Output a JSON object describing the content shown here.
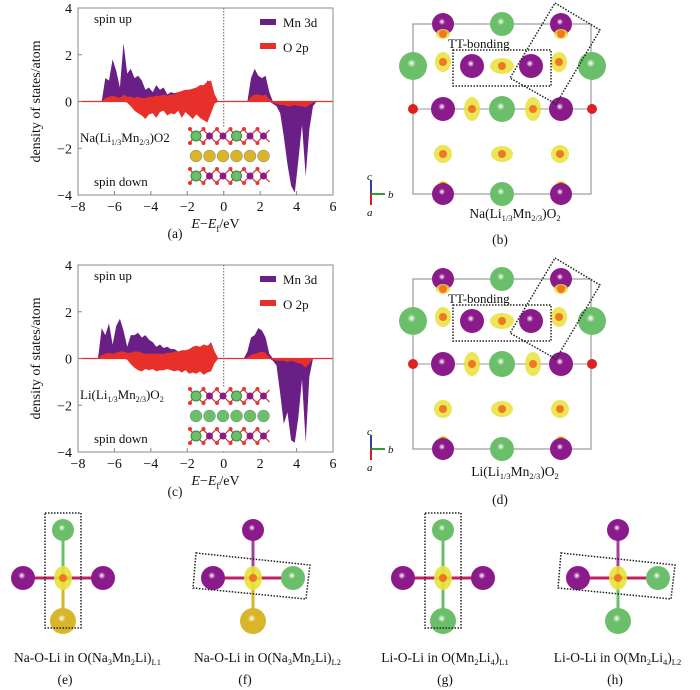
{
  "colors": {
    "mn": "#6a1f86",
    "o": "#e8302a",
    "mn_atom": "#8b1a8b",
    "li_atom": "#6cbf6a",
    "na_atom": "#d9b52a",
    "o_atom": "#f07820",
    "isosurface": "#e6e23a",
    "box": "#999999"
  },
  "chart_data": [
    {
      "type": "area",
      "panel": "(a)",
      "title": "",
      "xlabel": "E−Ef/eV",
      "ylabel": "density of states/atom",
      "xlim": [
        -8,
        6
      ],
      "ylim": [
        -4,
        4
      ],
      "xticks": [
        -8,
        -6,
        -4,
        -2,
        0,
        2,
        4,
        6
      ],
      "yticks": [
        -4,
        -2,
        0,
        2,
        4
      ],
      "legend": {
        "placement": "top-right",
        "entries": [
          "Mn 3d",
          "O 2p"
        ]
      },
      "annotations": [
        "spin up",
        "spin down",
        "Na(Li1/3Mn2/3)O2"
      ],
      "x": [
        -6.7,
        -6.5,
        -6.3,
        -6.1,
        -5.9,
        -5.7,
        -5.5,
        -5.3,
        -5.1,
        -4.9,
        -4.7,
        -4.5,
        -4.3,
        -4.1,
        -3.9,
        -3.7,
        -3.5,
        -3.3,
        -3.1,
        -2.9,
        -2.7,
        -2.5,
        -2.3,
        -2.1,
        -1.9,
        -1.7,
        -1.5,
        -1.3,
        -1.1,
        -0.9,
        -0.7,
        -0.5,
        -0.3,
        1.3,
        1.5,
        1.7,
        1.9,
        2.1,
        2.3,
        2.5,
        2.7,
        2.9,
        3.1,
        3.3,
        3.5,
        3.7,
        3.9,
        4.1,
        4.3,
        4.5,
        4.7,
        4.9,
        5.1
      ],
      "series": [
        {
          "name": "Mn 3d spin up",
          "values": [
            0,
            1.0,
            0.9,
            1.8,
            1.3,
            0.6,
            2.5,
            1.2,
            1.4,
            1.0,
            1.1,
            0.9,
            0.5,
            0.6,
            0.4,
            0.7,
            0.5,
            0.6,
            0.3,
            0.4,
            0.35,
            0.4,
            0.25,
            0.3,
            0.2,
            0.3,
            0.3,
            0.5,
            0.4,
            0.9,
            0.8,
            0.3,
            0,
            0,
            1.0,
            1.4,
            1.1,
            1.0,
            1.1,
            0.4,
            0,
            0,
            0,
            0,
            0,
            0,
            0,
            0,
            0,
            0,
            0,
            0,
            0
          ]
        },
        {
          "name": "O 2p spin up",
          "values": [
            0,
            0.15,
            0.2,
            0.25,
            0.2,
            0.15,
            0.3,
            0.2,
            0.2,
            0.15,
            0.2,
            0.15,
            0.15,
            0.2,
            0.2,
            0.25,
            0.25,
            0.3,
            0.25,
            0.3,
            0.3,
            0.4,
            0.45,
            0.5,
            0.5,
            0.55,
            0.6,
            0.7,
            0.7,
            0.85,
            0.9,
            0.3,
            0,
            0,
            0.2,
            0.3,
            0.3,
            0.25,
            0.3,
            0.1,
            0,
            0,
            0,
            0,
            0,
            0,
            0,
            0,
            0,
            0,
            0,
            0,
            0
          ]
        },
        {
          "name": "Mn 3d spin down",
          "values": [
            0,
            0,
            0,
            0,
            0,
            0,
            0,
            0,
            0,
            0,
            0,
            0,
            0,
            0,
            0,
            0,
            0,
            0,
            0,
            0,
            0,
            0,
            0,
            0,
            0,
            0,
            0,
            0,
            0,
            0,
            0,
            0,
            0,
            0,
            0,
            0,
            0,
            0,
            0,
            0,
            -0.1,
            -0.2,
            -0.5,
            -1.5,
            -2.7,
            -3.6,
            -3.9,
            -2.5,
            -1.0,
            -3.2,
            -1.2,
            -0.2,
            0
          ]
        },
        {
          "name": "O 2p spin down",
          "values": [
            0,
            0,
            0,
            0,
            0,
            0,
            0,
            -0.05,
            -0.2,
            -0.4,
            -0.5,
            -0.6,
            -0.75,
            -0.55,
            -0.5,
            -0.7,
            -0.45,
            -0.4,
            -0.6,
            -0.5,
            -0.55,
            -0.4,
            -0.7,
            -0.45,
            -0.6,
            -0.75,
            -0.55,
            -0.7,
            -0.8,
            -0.9,
            -0.5,
            -0.1,
            0,
            0,
            0,
            0,
            0,
            0,
            0,
            0,
            -0.05,
            -0.1,
            -0.15,
            -0.15,
            -0.2,
            -0.2,
            -0.15,
            -0.2,
            -0.2,
            -0.25,
            -0.15,
            -0.05,
            0
          ]
        }
      ]
    },
    {
      "type": "area",
      "panel": "(c)",
      "title": "",
      "xlabel": "E−Ef/eV",
      "ylabel": "density of states/atom",
      "xlim": [
        -8,
        6
      ],
      "ylim": [
        -4,
        4
      ],
      "xticks": [
        -8,
        -6,
        -4,
        -2,
        0,
        2,
        4,
        6
      ],
      "yticks": [
        -4,
        -2,
        0,
        2,
        4
      ],
      "legend": {
        "placement": "top-right",
        "entries": [
          "Mn 3d",
          "O 2p"
        ]
      },
      "annotations": [
        "spin up",
        "spin down",
        "Li(Li1/3Mn2/3)O2"
      ],
      "x": [
        -6.9,
        -6.7,
        -6.5,
        -6.3,
        -6.1,
        -5.9,
        -5.7,
        -5.5,
        -5.3,
        -5.1,
        -4.9,
        -4.7,
        -4.5,
        -4.3,
        -4.1,
        -3.9,
        -3.7,
        -3.5,
        -3.3,
        -3.1,
        -2.9,
        -2.7,
        -2.5,
        -2.3,
        -2.1,
        -1.9,
        -1.7,
        -1.5,
        -1.3,
        -1.1,
        -0.9,
        -0.7,
        -0.5,
        -0.3,
        1.1,
        1.3,
        1.5,
        1.7,
        1.9,
        2.1,
        2.3,
        2.5,
        2.7,
        2.9,
        3.1,
        3.3,
        3.5,
        3.7,
        3.9,
        4.1,
        4.3,
        4.5,
        4.7,
        4.9
      ],
      "series": [
        {
          "name": "Mn 3d spin up",
          "values": [
            0,
            1.3,
            1.0,
            1.5,
            0.6,
            1.4,
            1.7,
            1.2,
            0.5,
            1.0,
            1.0,
            1.1,
            0.9,
            1.0,
            0.8,
            0.7,
            0.5,
            0.6,
            0.45,
            0.5,
            0.4,
            0.4,
            0.3,
            0.3,
            0.3,
            0.35,
            0.5,
            0.5,
            0.4,
            0.6,
            0.5,
            0.7,
            0.3,
            0,
            0,
            0.3,
            0.9,
            1.0,
            1.3,
            1.2,
            0.9,
            0.2,
            0,
            0,
            0,
            0,
            0,
            0,
            0,
            0,
            0,
            0,
            0,
            0
          ]
        },
        {
          "name": "O 2p spin up",
          "values": [
            0,
            0.15,
            0.2,
            0.25,
            0.2,
            0.25,
            0.3,
            0.3,
            0.25,
            0.25,
            0.3,
            0.3,
            0.25,
            0.2,
            0.2,
            0.2,
            0.2,
            0.2,
            0.2,
            0.25,
            0.25,
            0.3,
            0.3,
            0.35,
            0.35,
            0.4,
            0.5,
            0.55,
            0.5,
            0.6,
            0.55,
            0.65,
            0.3,
            0,
            0,
            0.05,
            0.15,
            0.2,
            0.25,
            0.3,
            0.25,
            0.05,
            0,
            0,
            0,
            0,
            0,
            0,
            0,
            0,
            0,
            0,
            0,
            0
          ]
        },
        {
          "name": "Mn 3d spin down",
          "values": [
            0,
            0,
            0,
            0,
            0,
            0,
            0,
            0,
            0,
            0,
            0,
            0,
            0,
            0,
            0,
            0,
            0,
            0,
            0,
            0,
            0,
            0,
            0,
            0,
            0,
            0,
            0,
            0,
            0,
            0,
            0,
            0,
            0,
            0,
            0,
            0,
            0,
            0,
            0,
            0,
            0,
            0,
            -0.1,
            -0.3,
            -1.5,
            -2.8,
            -2.3,
            -3.5,
            -3.6,
            -2.5,
            -0.9,
            -3.6,
            -0.8,
            0
          ]
        },
        {
          "name": "O 2p spin down",
          "values": [
            0,
            0,
            0,
            0,
            0,
            0,
            0,
            0,
            -0.05,
            -0.25,
            -0.4,
            -0.5,
            -0.55,
            -0.45,
            -0.5,
            -0.45,
            -0.55,
            -0.5,
            -0.5,
            -0.45,
            -0.5,
            -0.55,
            -0.5,
            -0.6,
            -0.5,
            -0.65,
            -0.6,
            -0.65,
            -0.55,
            -0.7,
            -0.6,
            -0.55,
            -0.2,
            0,
            0,
            0,
            0,
            0,
            0,
            0,
            0,
            0,
            -0.05,
            -0.1,
            -0.1,
            -0.1,
            -0.15,
            -0.1,
            -0.15,
            -0.2,
            -0.25,
            -0.4,
            -0.2,
            0
          ]
        }
      ]
    }
  ],
  "panels": {
    "a": {
      "label": "(a)",
      "formula": "Na(Li1/3Mn2/3)O2"
    },
    "b": {
      "label": "(b)",
      "bonding_label": "TT-bonding",
      "formula": "Na(Li1/3Mn2/3)O2",
      "axes": {
        "c": "c",
        "b": "b",
        "a": "a"
      }
    },
    "c": {
      "label": "(c)",
      "formula": "Li(Li1/3Mn2/3)O2"
    },
    "d": {
      "label": "(d)",
      "bonding_label": "TT-bonding",
      "formula": "Li(Li1/3Mn2/3)O2",
      "axes": {
        "c": "c",
        "b": "b",
        "a": "a"
      }
    },
    "e": {
      "label": "(e)",
      "caption_main": "Na-O-Li in O(Na",
      "s1": "3",
      "m1": "Mn",
      "s2": "2",
      "m2": "Li)",
      "s3": "L1"
    },
    "f": {
      "label": "(f)",
      "caption_main": "Na-O-Li in O(Na",
      "s1": "3",
      "m1": "Mn",
      "s2": "2",
      "m2": "Li)",
      "s3": "L2"
    },
    "g": {
      "label": "(g)",
      "caption_main": "Li-O-Li in O(Mn",
      "s1": "2",
      "m1": "Li",
      "s2": "4",
      "m2": ")",
      "s3": "L1"
    },
    "h": {
      "label": "(h)",
      "caption_main": "Li-O-Li in O(Mn",
      "s1": "2",
      "m1": "Li",
      "s2": "4",
      "m2": ")",
      "s3": "L2"
    }
  },
  "text": {
    "spin_up": "spin up",
    "spin_down": "spin down",
    "ylabel": "density of states/atom",
    "xlabel_E": "E",
    "xlabel_minus": "−",
    "xlabel_Ef": "E",
    "xlabel_f": "f",
    "xlabel_unit": "/eV",
    "legend_mn": "Mn 3d",
    "legend_o": "O 2p",
    "formula_na_prefix": "Na(Li",
    "formula_li_prefix": "Li(Li",
    "frac1": "1/3",
    "mn": "Mn",
    "frac2": "2/3",
    "suffix_o2_plain": ")O2",
    "suffix_o": ")O",
    "two": "2"
  }
}
